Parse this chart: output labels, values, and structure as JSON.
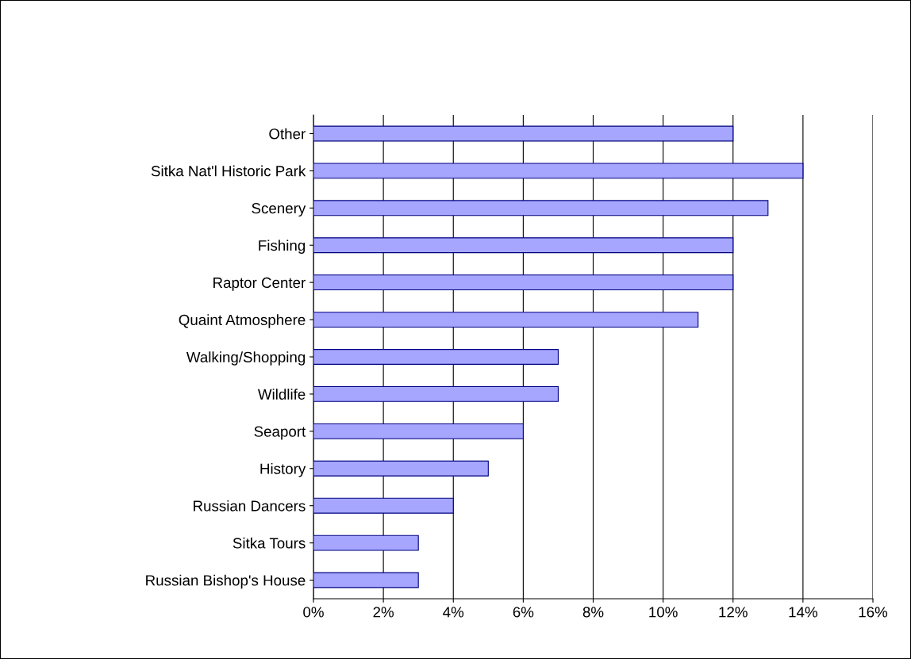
{
  "chart_data": {
    "type": "bar",
    "orientation": "horizontal",
    "categories": [
      "Other",
      "Sitka Nat'l Historic Park",
      "Scenery",
      "Fishing",
      "Raptor Center",
      "Quaint Atmosphere",
      "Walking/Shopping",
      "Wildlife",
      "Seaport",
      "History",
      "Russian Dancers",
      "Sitka Tours",
      "Russian Bishop's House"
    ],
    "values": [
      12,
      14,
      13,
      12,
      12,
      11,
      7,
      7,
      6,
      5,
      4,
      3,
      3
    ],
    "color": "#a6a6ff",
    "xlim": [
      0,
      16
    ],
    "xticks": [
      {
        "value": 0,
        "label": "0%"
      },
      {
        "value": 2,
        "label": "2%"
      },
      {
        "value": 4,
        "label": "4%"
      },
      {
        "value": 6,
        "label": "6%"
      },
      {
        "value": 8,
        "label": "8%"
      },
      {
        "value": 10,
        "label": "10%"
      },
      {
        "value": 12,
        "label": "12%"
      },
      {
        "value": 14,
        "label": "14%"
      },
      {
        "value": 16,
        "label": "16%"
      }
    ],
    "grid": "x"
  }
}
